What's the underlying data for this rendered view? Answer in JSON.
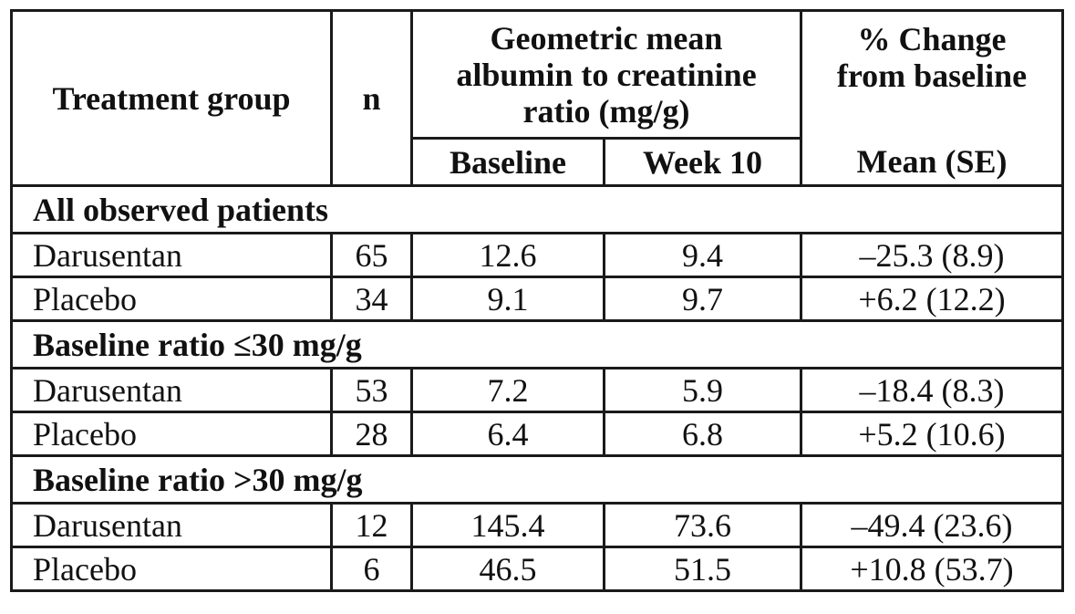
{
  "table": {
    "headers": {
      "treatment_group": "Treatment group",
      "n": "n",
      "gm_line1": "Geometric mean",
      "gm_line2": "albumin to creatinine",
      "gm_line3": "ratio (mg/g)",
      "pct_line1": "% Change",
      "pct_line2": "from baseline",
      "baseline": "Baseline",
      "week10": "Week 10",
      "mean_se": "Mean (SE)"
    },
    "sections": [
      {
        "title": "All observed patients",
        "rows": [
          {
            "group": "Darusentan",
            "n": "65",
            "baseline": "12.6",
            "week10": "9.4",
            "change": "–25.3 (8.9)"
          },
          {
            "group": "Placebo",
            "n": "34",
            "baseline": "9.1",
            "week10": "9.7",
            "change": "+6.2 (12.2)"
          }
        ]
      },
      {
        "title": "Baseline ratio ≤30 mg/g",
        "rows": [
          {
            "group": "Darusentan",
            "n": "53",
            "baseline": "7.2",
            "week10": "5.9",
            "change": "–18.4 (8.3)"
          },
          {
            "group": "Placebo",
            "n": "28",
            "baseline": "6.4",
            "week10": "6.8",
            "change": "+5.2 (10.6)"
          }
        ]
      },
      {
        "title": "Baseline ratio >30 mg/g",
        "rows": [
          {
            "group": "Darusentan",
            "n": "12",
            "baseline": "145.4",
            "week10": "73.6",
            "change": "–49.4 (23.6)"
          },
          {
            "group": "Placebo",
            "n": "6",
            "baseline": "46.5",
            "week10": "51.5",
            "change": "+10.8 (53.7)"
          }
        ]
      }
    ]
  }
}
